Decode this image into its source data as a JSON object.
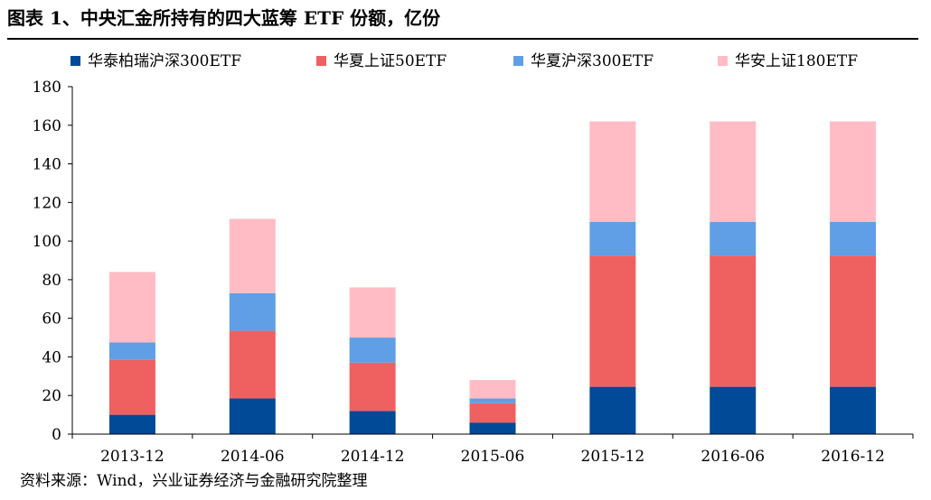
{
  "title": "图表 1、中央汇金所持有的四大蓝筹 ETF 份额，亿份",
  "source": "资料来源：Wind，兴业证券经济与金融研究院整理",
  "chart_data": {
    "type": "bar",
    "stacked": true,
    "categories": [
      "2013-12",
      "2014-06",
      "2014-12",
      "2015-06",
      "2015-12",
      "2016-06",
      "2016-12"
    ],
    "series": [
      {
        "name": "华泰柏瑞沪深300ETF",
        "color": "#004a97",
        "values": [
          10,
          18.5,
          12,
          6,
          24.5,
          24.5,
          24.5
        ]
      },
      {
        "name": "华夏上证50ETF",
        "color": "#ef6161",
        "values": [
          28.5,
          35,
          25,
          10,
          68,
          68,
          68
        ]
      },
      {
        "name": "华夏沪深300ETF",
        "color": "#609fe6",
        "values": [
          9,
          19.5,
          13,
          2.5,
          17.5,
          17.5,
          17.5
        ]
      },
      {
        "name": "华安上证180ETF",
        "color": "#ffbcc5",
        "values": [
          36.5,
          38.5,
          26,
          9.5,
          52,
          52,
          52
        ]
      }
    ],
    "ylim": [
      0,
      180
    ],
    "yticks": [
      0,
      20,
      40,
      60,
      80,
      100,
      120,
      140,
      160,
      180
    ],
    "grid": false,
    "legend": "top"
  }
}
